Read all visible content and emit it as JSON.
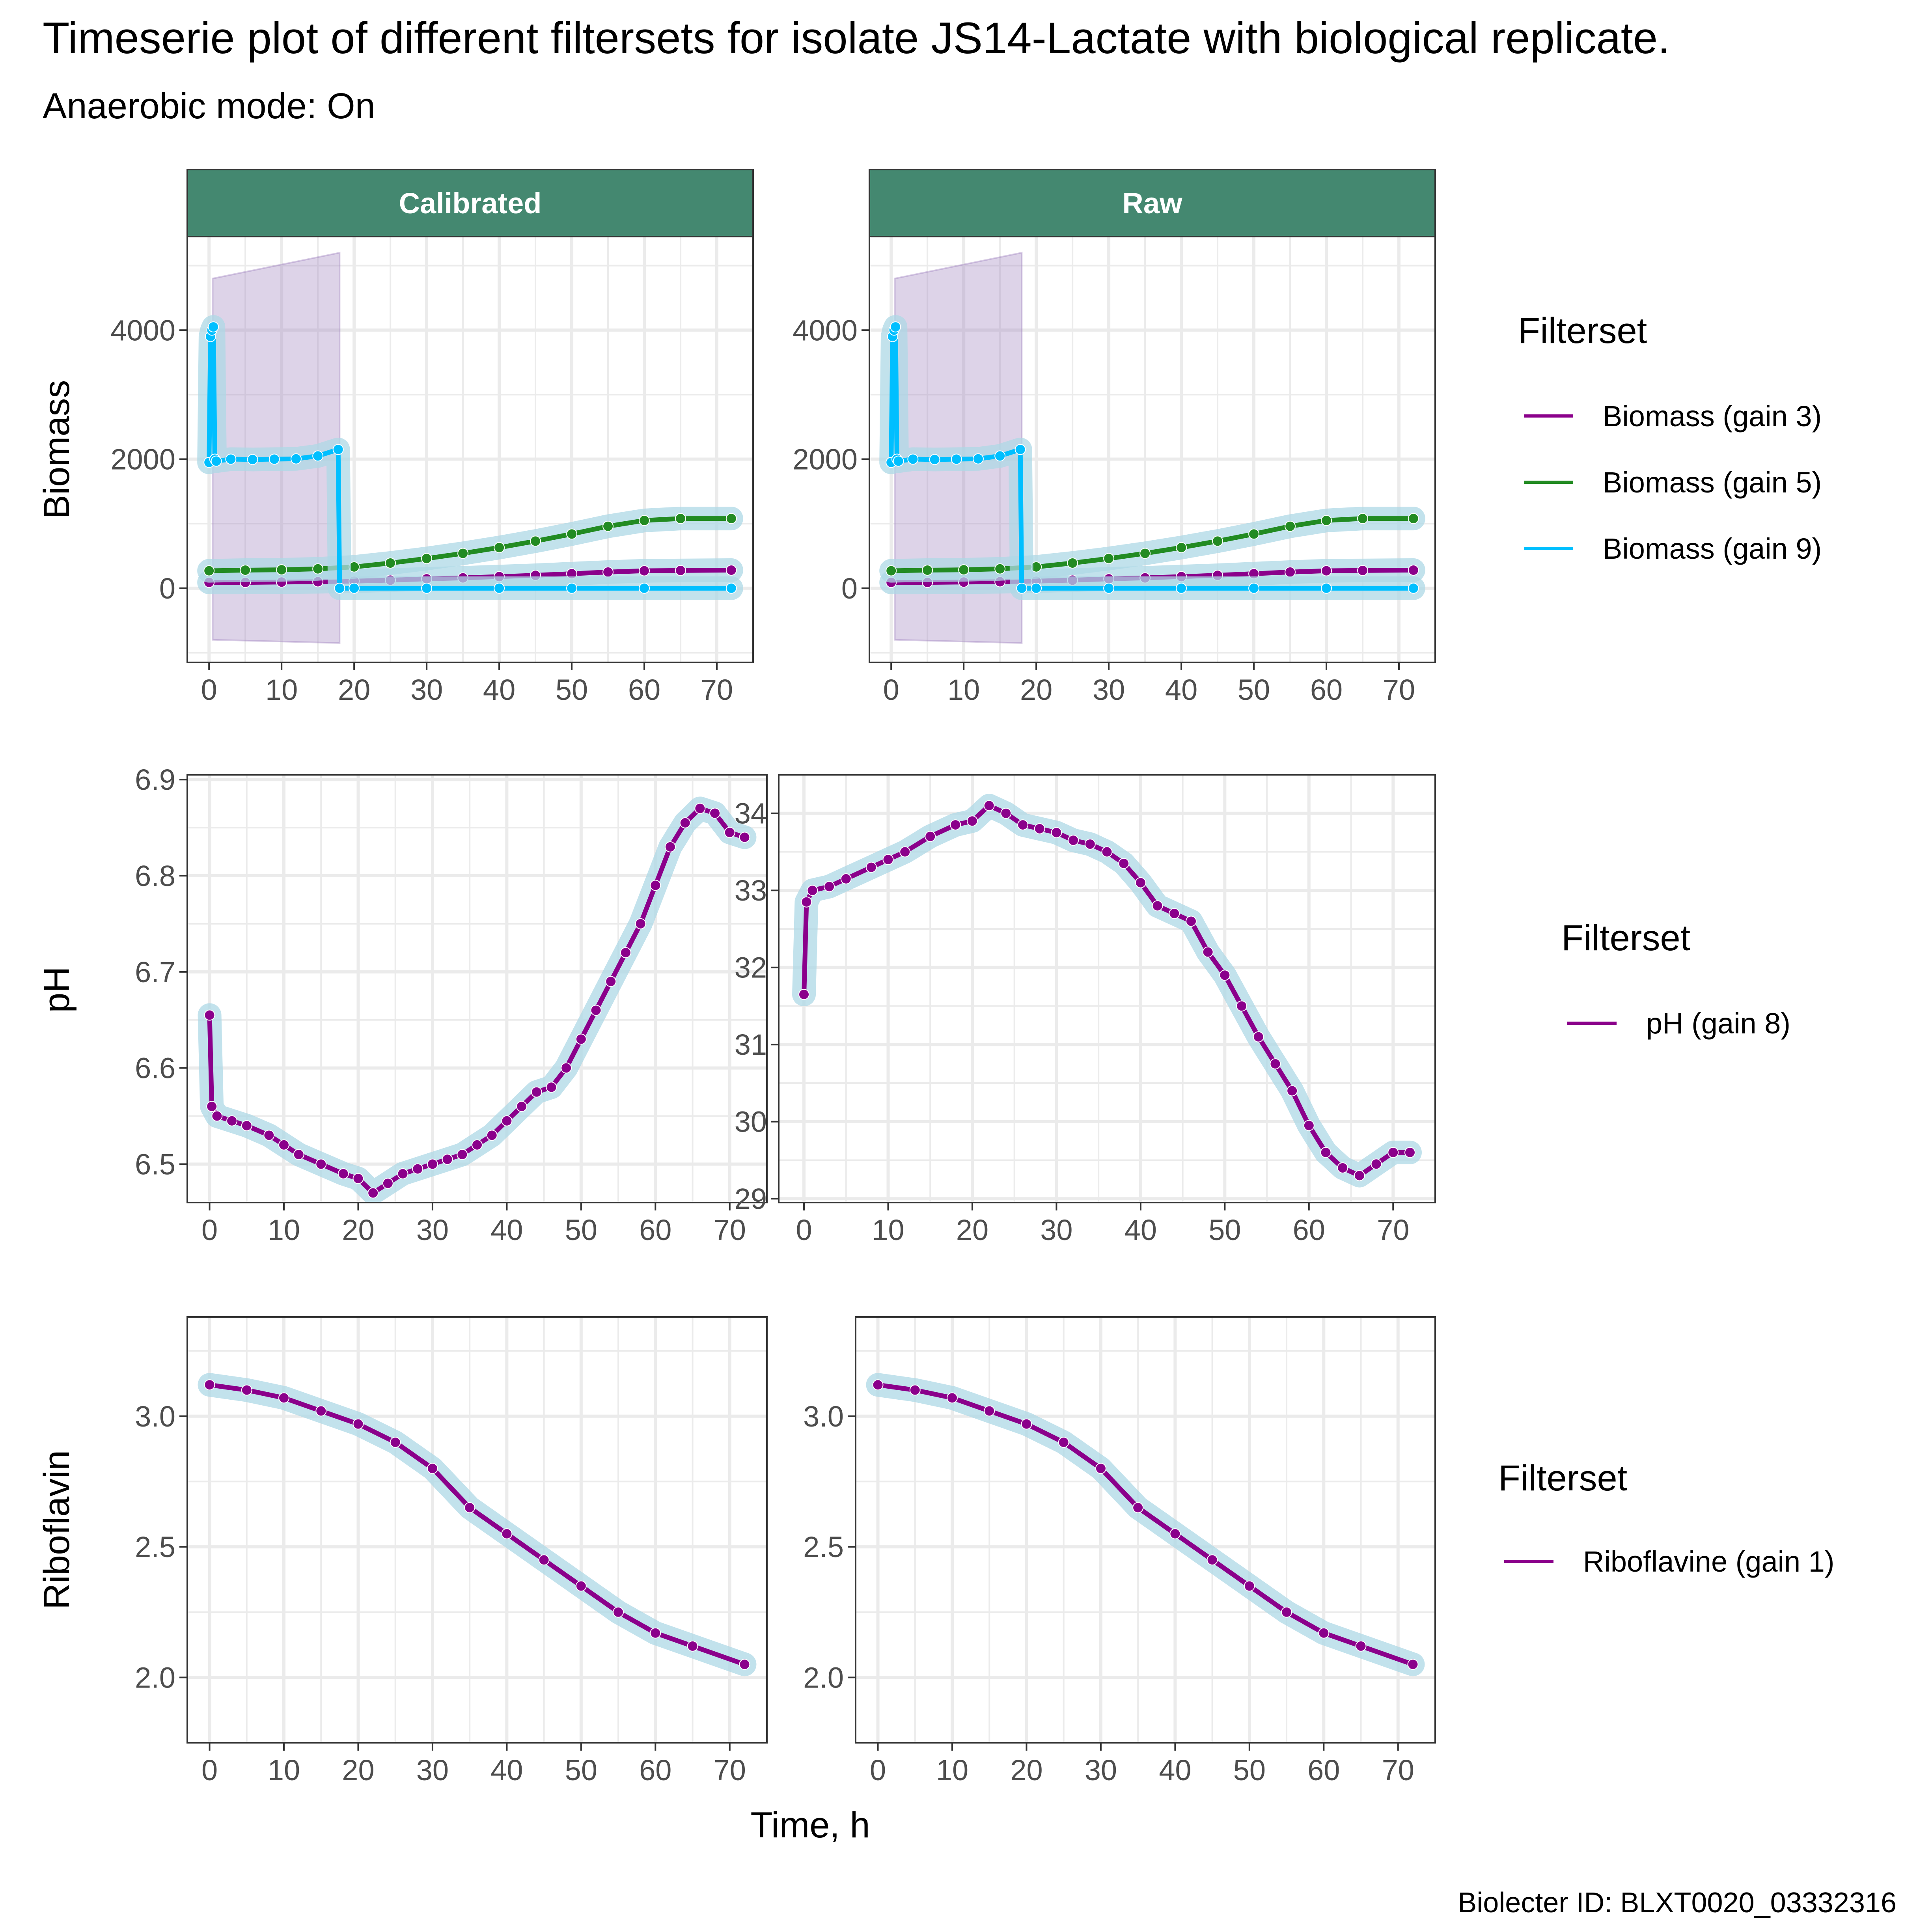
{
  "title": "Timeserie plot of different filtersets for isolate JS14-Lactate with biological replicate.",
  "subtitle": "Anaerobic mode: On",
  "caption": "Biolecter ID: BLXT0020_03332316",
  "x_axis_label": "Time, h",
  "strip_labels": [
    "Calibrated",
    "Raw"
  ],
  "colors": {
    "strip_fill": "#448870",
    "purple": "#8B008B",
    "green": "#228B22",
    "cyan": "#00BFFF",
    "halo": "#ADD8E6",
    "grid": "#EBEBEB",
    "ribbon": "#9D80BD"
  },
  "legends": [
    {
      "title": "Filterset",
      "items": [
        {
          "label": "Biomass (gain 3)",
          "color": "#8B008B"
        },
        {
          "label": "Biomass (gain 5)",
          "color": "#228B22"
        },
        {
          "label": "Biomass (gain 9)",
          "color": "#00BFFF"
        }
      ]
    },
    {
      "title": "Filterset",
      "items": [
        {
          "label": "pH (gain 8)",
          "color": "#8B008B"
        }
      ]
    },
    {
      "title": "Filterset",
      "items": [
        {
          "label": "Riboflavine (gain 1)",
          "color": "#8B008B"
        }
      ]
    }
  ],
  "chart_data": [
    {
      "type": "line",
      "row_label": "Biomass",
      "xlim": [
        -3,
        75
      ],
      "x_ticks": [
        0,
        10,
        20,
        30,
        40,
        50,
        60,
        70
      ],
      "panels": [
        {
          "strip": "Calibrated",
          "ylim": [
            -1150,
            5450
          ],
          "y_ticks": [
            0,
            2000,
            4000
          ],
          "ribbons": [
            {
              "x": [
                0.5,
                18
              ],
              "lower": [
                -800,
                -850
              ],
              "upper": [
                4800,
                5200
              ]
            }
          ],
          "series": [
            {
              "name": "Biomass (gain 3)",
              "color": "#8B008B",
              "x": [
                0,
                5,
                10,
                15,
                20,
                25,
                30,
                35,
                40,
                45,
                50,
                55,
                60,
                65,
                72
              ],
              "y": [
                90,
                90,
                95,
                100,
                110,
                125,
                145,
                160,
                180,
                200,
                225,
                250,
                270,
                275,
                280
              ]
            },
            {
              "name": "Biomass (gain 5)",
              "color": "#228B22",
              "x": [
                0,
                5,
                10,
                15,
                20,
                25,
                30,
                35,
                40,
                45,
                50,
                55,
                60,
                65,
                72
              ],
              "y": [
                270,
                280,
                285,
                300,
                330,
                390,
                460,
                540,
                630,
                730,
                840,
                960,
                1050,
                1080,
                1080
              ]
            },
            {
              "name": "Biomass (gain 9)",
              "color": "#00BFFF",
              "x": [
                0,
                0.2,
                0.4,
                0.6,
                0.8,
                1,
                3,
                6,
                9,
                12,
                15,
                17.8,
                18,
                20,
                30,
                40,
                50,
                60,
                72
              ],
              "y": [
                1950,
                3900,
                4000,
                4050,
                2000,
                1970,
                2000,
                1995,
                2000,
                2005,
                2050,
                2150,
                0,
                0,
                0,
                0,
                0,
                0,
                0
              ]
            }
          ]
        },
        {
          "strip": "Raw",
          "ylim": [
            -1150,
            5450
          ],
          "y_ticks": [
            0,
            2000,
            4000
          ],
          "ribbons": [
            {
              "x": [
                0.5,
                18
              ],
              "lower": [
                -800,
                -850
              ],
              "upper": [
                4800,
                5200
              ]
            }
          ],
          "series": [
            {
              "name": "Biomass (gain 3)",
              "color": "#8B008B",
              "x": [
                0,
                5,
                10,
                15,
                20,
                25,
                30,
                35,
                40,
                45,
                50,
                55,
                60,
                65,
                72
              ],
              "y": [
                90,
                90,
                95,
                100,
                110,
                125,
                145,
                160,
                180,
                200,
                225,
                250,
                270,
                275,
                280
              ]
            },
            {
              "name": "Biomass (gain 5)",
              "color": "#228B22",
              "x": [
                0,
                5,
                10,
                15,
                20,
                25,
                30,
                35,
                40,
                45,
                50,
                55,
                60,
                65,
                72
              ],
              "y": [
                270,
                280,
                285,
                300,
                330,
                390,
                460,
                540,
                630,
                730,
                840,
                960,
                1050,
                1080,
                1080
              ]
            },
            {
              "name": "Biomass (gain 9)",
              "color": "#00BFFF",
              "x": [
                0,
                0.2,
                0.4,
                0.6,
                0.8,
                1,
                3,
                6,
                9,
                12,
                15,
                17.8,
                18,
                20,
                30,
                40,
                50,
                60,
                72
              ],
              "y": [
                1950,
                3900,
                4000,
                4050,
                2000,
                1970,
                2000,
                1995,
                2000,
                2005,
                2050,
                2150,
                0,
                0,
                0,
                0,
                0,
                0,
                0
              ]
            }
          ]
        }
      ]
    },
    {
      "type": "line",
      "row_label": "pH",
      "xlim": [
        -3,
        75
      ],
      "x_ticks": [
        0,
        10,
        20,
        30,
        40,
        50,
        60,
        70
      ],
      "panels": [
        {
          "strip": "Calibrated",
          "ylim": [
            6.46,
            6.905
          ],
          "y_ticks": [
            6.5,
            6.6,
            6.7,
            6.8,
            6.9
          ],
          "series": [
            {
              "name": "pH (gain 8)",
              "color": "#8B008B",
              "x": [
                0,
                0.3,
                1,
                3,
                5,
                8,
                10,
                12,
                15,
                18,
                20,
                22,
                24,
                26,
                28,
                30,
                32,
                34,
                36,
                38,
                40,
                42,
                44,
                46,
                48,
                50,
                52,
                54,
                56,
                58,
                60,
                62,
                64,
                66,
                68,
                70,
                72
              ],
              "y": [
                6.655,
                6.56,
                6.55,
                6.545,
                6.54,
                6.53,
                6.52,
                6.51,
                6.5,
                6.49,
                6.485,
                6.47,
                6.48,
                6.49,
                6.495,
                6.5,
                6.505,
                6.51,
                6.52,
                6.53,
                6.545,
                6.56,
                6.575,
                6.58,
                6.6,
                6.63,
                6.66,
                6.69,
                6.72,
                6.75,
                6.79,
                6.83,
                6.855,
                6.87,
                6.865,
                6.845,
                6.84
              ]
            }
          ]
        },
        {
          "strip": "Raw",
          "ylim": [
            28.95,
            34.5
          ],
          "y_ticks": [
            29,
            30,
            31,
            32,
            33,
            34
          ],
          "series": [
            {
              "name": "pH (gain 8)",
              "color": "#8B008B",
              "x": [
                0,
                0.3,
                1,
                3,
                5,
                8,
                10,
                12,
                15,
                18,
                20,
                22,
                24,
                26,
                28,
                30,
                32,
                34,
                36,
                38,
                40,
                42,
                44,
                46,
                48,
                50,
                52,
                54,
                56,
                58,
                60,
                62,
                64,
                66,
                68,
                70,
                72
              ],
              "y": [
                31.65,
                32.85,
                33.0,
                33.05,
                33.15,
                33.3,
                33.4,
                33.5,
                33.7,
                33.85,
                33.9,
                34.1,
                34.0,
                33.85,
                33.8,
                33.75,
                33.65,
                33.6,
                33.5,
                33.35,
                33.1,
                32.8,
                32.7,
                32.6,
                32.2,
                31.9,
                31.5,
                31.1,
                30.75,
                30.4,
                29.95,
                29.6,
                29.4,
                29.3,
                29.45,
                29.6,
                29.6
              ]
            }
          ]
        }
      ]
    },
    {
      "type": "line",
      "row_label": "Riboflavin",
      "xlim": [
        -3,
        75
      ],
      "x_ticks": [
        0,
        10,
        20,
        30,
        40,
        50,
        60,
        70
      ],
      "panels": [
        {
          "strip": "Calibrated",
          "ylim": [
            1.75,
            3.38
          ],
          "y_ticks": [
            2.0,
            2.5,
            3.0
          ],
          "series": [
            {
              "name": "Riboflavine (gain 1)",
              "color": "#8B008B",
              "x": [
                0,
                5,
                10,
                15,
                20,
                25,
                30,
                35,
                40,
                45,
                50,
                55,
                60,
                65,
                72
              ],
              "y": [
                3.12,
                3.1,
                3.07,
                3.02,
                2.97,
                2.9,
                2.8,
                2.65,
                2.55,
                2.45,
                2.35,
                2.25,
                2.17,
                2.12,
                2.05
              ]
            }
          ]
        },
        {
          "strip": "Raw",
          "ylim": [
            1.75,
            3.38
          ],
          "y_ticks": [
            2.0,
            2.5,
            3.0
          ],
          "series": [
            {
              "name": "Riboflavine (gain 1)",
              "color": "#8B008B",
              "x": [
                0,
                5,
                10,
                15,
                20,
                25,
                30,
                35,
                40,
                45,
                50,
                55,
                60,
                65,
                72
              ],
              "y": [
                3.12,
                3.1,
                3.07,
                3.02,
                2.97,
                2.9,
                2.8,
                2.65,
                2.55,
                2.45,
                2.35,
                2.25,
                2.17,
                2.12,
                2.05
              ]
            }
          ]
        }
      ]
    }
  ]
}
